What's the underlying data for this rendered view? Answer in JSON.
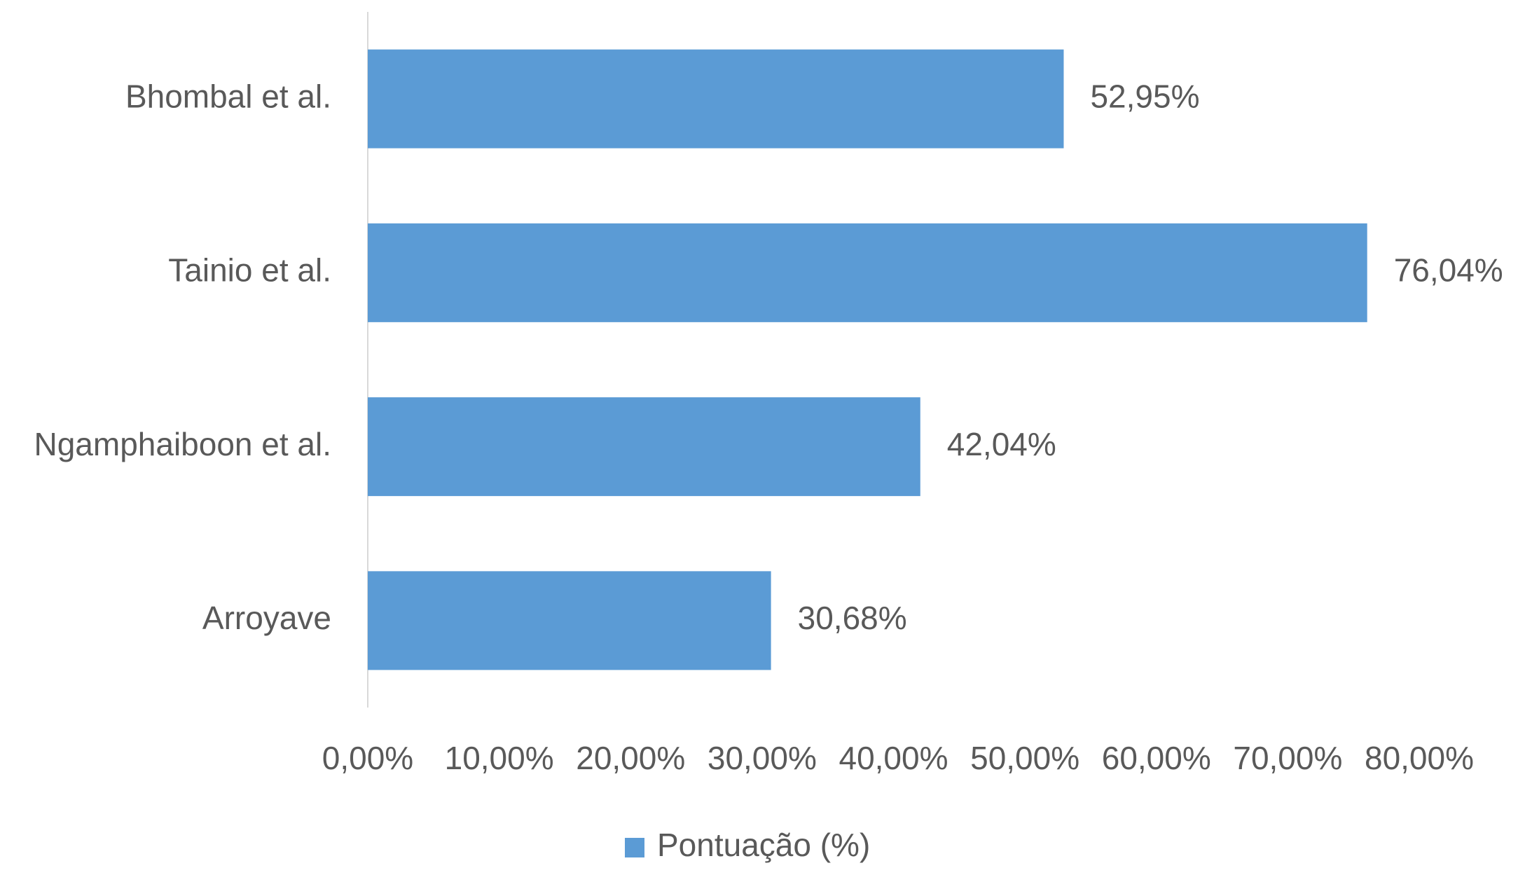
{
  "chart_data": {
    "type": "bar",
    "orientation": "horizontal",
    "categories": [
      "Bhombal et al.",
      "Tainio et al.",
      "Ngamphaiboon et al.",
      "Arroyave"
    ],
    "series": [
      {
        "name": "Pontuação (%)",
        "color": "#5b9bd5",
        "values": [
          52.95,
          76.04,
          42.04,
          30.68
        ],
        "value_labels": [
          "52,95%",
          "76,04%",
          "42,04%",
          "30,68%"
        ]
      }
    ],
    "xlim": [
      0,
      80
    ],
    "xticks": [
      {
        "value": 0,
        "label": "0,00%"
      },
      {
        "value": 10,
        "label": "10,00%"
      },
      {
        "value": 20,
        "label": "20,00%"
      },
      {
        "value": 30,
        "label": "30,00%"
      },
      {
        "value": 40,
        "label": "40,00%"
      },
      {
        "value": 50,
        "label": "50,00%"
      },
      {
        "value": 60,
        "label": "60,00%"
      },
      {
        "value": 70,
        "label": "70,00%"
      },
      {
        "value": 80,
        "label": "80,00%"
      }
    ],
    "grid": false,
    "legend": "bottom"
  }
}
